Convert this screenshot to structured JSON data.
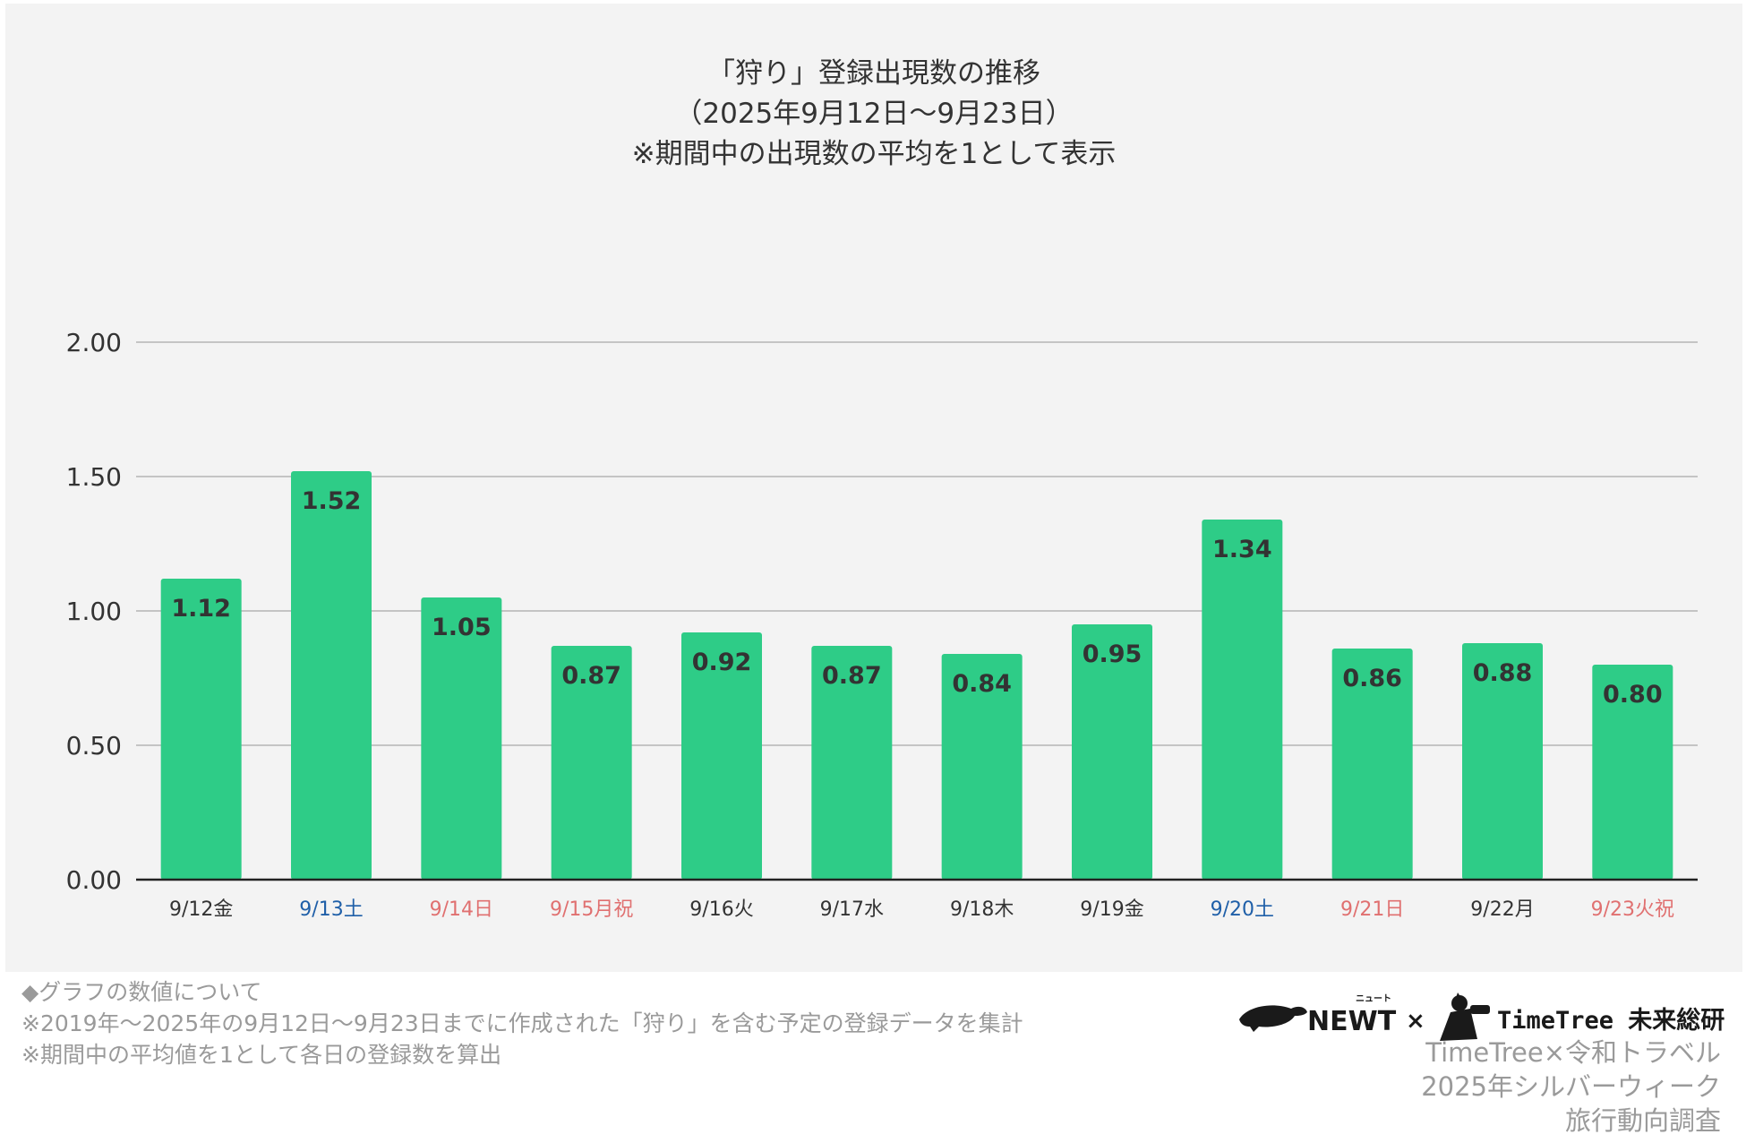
{
  "chart_data": {
    "type": "bar",
    "title_lines": [
      "「狩り」登録出現数の推移",
      "（2025年9月12日～9月23日）",
      "※期間中の出現数の平均を1として表示"
    ],
    "categories": [
      "9/12金",
      "9/13土",
      "9/14日",
      "9/15月祝",
      "9/16火",
      "9/17水",
      "9/18木",
      "9/19金",
      "9/20土",
      "9/21日",
      "9/22月",
      "9/23火祝"
    ],
    "values": [
      1.12,
      1.52,
      1.05,
      0.87,
      0.92,
      0.87,
      0.84,
      0.95,
      1.34,
      0.86,
      0.88,
      0.8
    ],
    "value_labels": [
      "1.12",
      "1.52",
      "1.05",
      "0.87",
      "0.92",
      "0.87",
      "0.84",
      "0.95",
      "1.34",
      "0.86",
      "0.88",
      "0.80"
    ],
    "category_colors": [
      "#333333",
      "#1f5fa8",
      "#e07070",
      "#e07070",
      "#333333",
      "#333333",
      "#333333",
      "#333333",
      "#1f5fa8",
      "#e07070",
      "#333333",
      "#e07070"
    ],
    "yticks": [
      0,
      0.5,
      1,
      1.5,
      2
    ],
    "ytick_labels": [
      "0.00",
      "0.50",
      "1.00",
      "1.50",
      "2.00"
    ],
    "ylim": [
      0,
      2
    ],
    "bar_color": "#2ecc87",
    "grid": true
  },
  "footnote": {
    "lines": [
      "◆グラフの数値について",
      "※2019年～2025年の9月12日～9月23日までに作成された「狩り」を含む予定の登録データを集計",
      "※期間中の平均値を1として各日の登録数を算出"
    ]
  },
  "logos": {
    "newt": "NEWT",
    "newt_ruby": "ニュート",
    "separator": "×",
    "timetree": "TimeTree 未来総研"
  },
  "credit": {
    "lines": [
      "TimeTree×令和トラベル",
      "2025年シルバーウィーク",
      "旅行動向調査"
    ]
  }
}
